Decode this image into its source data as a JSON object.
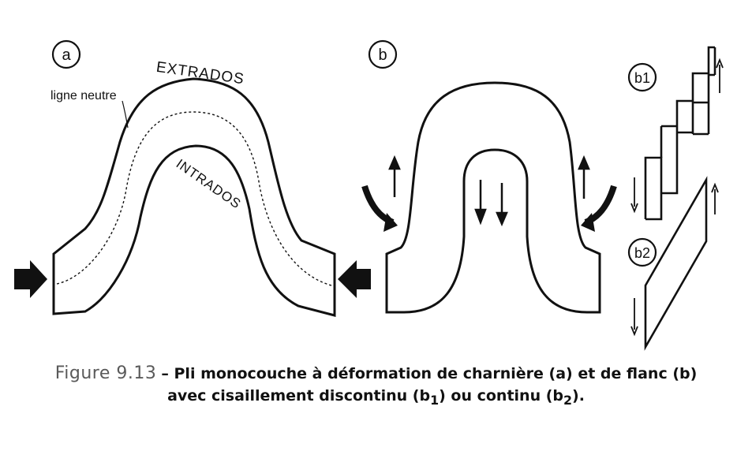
{
  "labels": {
    "panel_a": "a",
    "panel_b": "b",
    "panel_b1": "b1",
    "panel_b2": "b2",
    "extrados": "EXTRADOS",
    "intrados": "INTRADOS",
    "ligne_neutre": "ligne neutre"
  },
  "caption": {
    "figure_number": "Figure 9.13",
    "line1": "– Pli monocouche à déformation de charnière (a) et de flanc (b)",
    "line2_a": "avec cisaillement discontinu (b",
    "sub1": "1",
    "line2_b": ") ou continu (b",
    "sub2": "2",
    "line2_c": ")."
  },
  "colors": {
    "ink": "#111111",
    "caption_gray": "#5a5a5a",
    "background": "#ffffff"
  }
}
